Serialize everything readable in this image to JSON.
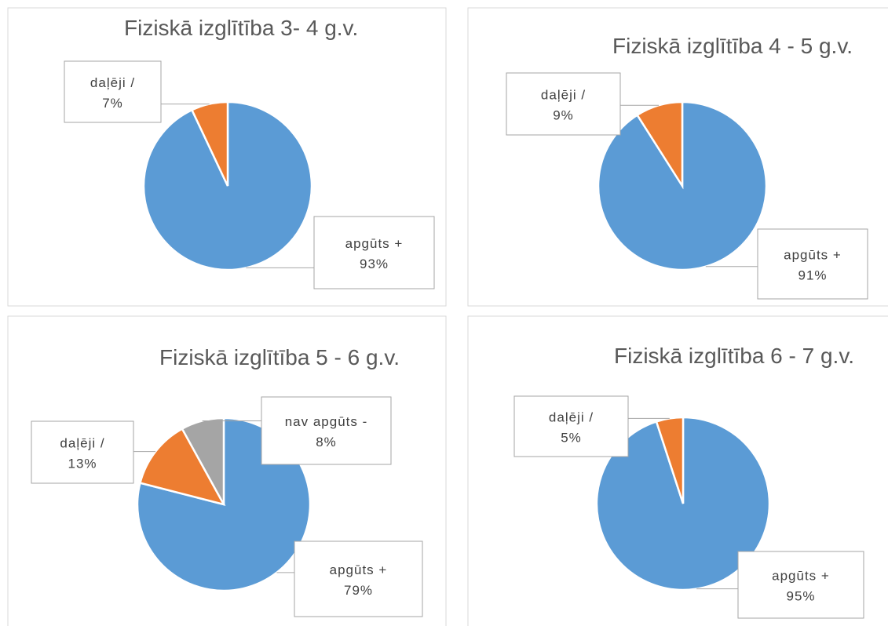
{
  "chart_data": [
    {
      "type": "pie",
      "title": "Fiziskā izglītība 3- 4 g.v.",
      "categories": [
        "apgūts +",
        "daļēji /"
      ],
      "values": [
        93,
        7
      ],
      "value_labels": [
        "93%",
        "7%"
      ],
      "colors": [
        "#5b9bd5",
        "#ed7d31"
      ]
    },
    {
      "type": "pie",
      "title": "Fiziskā izglītība 4 - 5 g.v.",
      "categories": [
        "apgūts +",
        "daļēji /"
      ],
      "values": [
        91,
        9
      ],
      "value_labels": [
        "91%",
        "9%"
      ],
      "colors": [
        "#5b9bd5",
        "#ed7d31"
      ]
    },
    {
      "type": "pie",
      "title": "Fiziskā izglītība 5 - 6 g.v.",
      "categories": [
        "apgūts +",
        "daļēji /",
        "nav apgūts -"
      ],
      "values": [
        79,
        13,
        8
      ],
      "value_labels": [
        "79%",
        "13%",
        "8%"
      ],
      "colors": [
        "#5b9bd5",
        "#ed7d31",
        "#a5a5a5"
      ]
    },
    {
      "type": "pie",
      "title": "Fiziskā izglītība 6 - 7 g.v.",
      "categories": [
        "apgūts +",
        "daļēji /"
      ],
      "values": [
        95,
        5
      ],
      "value_labels": [
        "95%",
        "5%"
      ],
      "colors": [
        "#5b9bd5",
        "#ed7d31"
      ]
    }
  ]
}
